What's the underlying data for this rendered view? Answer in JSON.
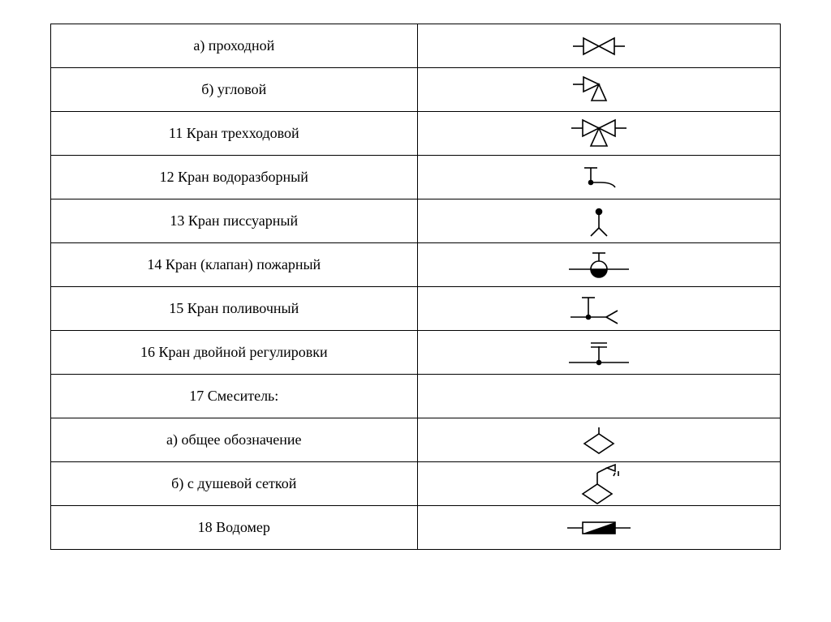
{
  "table": {
    "border_color": "#000000",
    "background_color": "#ffffff",
    "font_family": "Times New Roman",
    "font_size_pt": 14,
    "stroke_width": 1.6,
    "symbol_stroke": "#000000",
    "rows": [
      {
        "label": "а) проходной",
        "symbol": "valve-bowtie"
      },
      {
        "label": "б) угловой",
        "symbol": "valve-angle"
      },
      {
        "label": "11 Кран трехходовой",
        "symbol": "valve-threeway"
      },
      {
        "label": "12 Кран водоразборный",
        "symbol": "tap-water"
      },
      {
        "label": "13 Кран писсуарный",
        "symbol": "tap-urinal"
      },
      {
        "label": "14 Кран (клапан) пожарный",
        "symbol": "valve-fire"
      },
      {
        "label": "15 Кран поливочный",
        "symbol": "tap-hose"
      },
      {
        "label": "16 Кран двойной регулировки",
        "symbol": "valve-double-reg"
      },
      {
        "label": "17 Смеситель:",
        "symbol": "none"
      },
      {
        "label": "а) общее обозначение",
        "symbol": "mixer-general"
      },
      {
        "label": "б) с душевой сеткой",
        "symbol": "mixer-shower"
      },
      {
        "label": "18 Водомер",
        "symbol": "water-meter"
      }
    ]
  }
}
